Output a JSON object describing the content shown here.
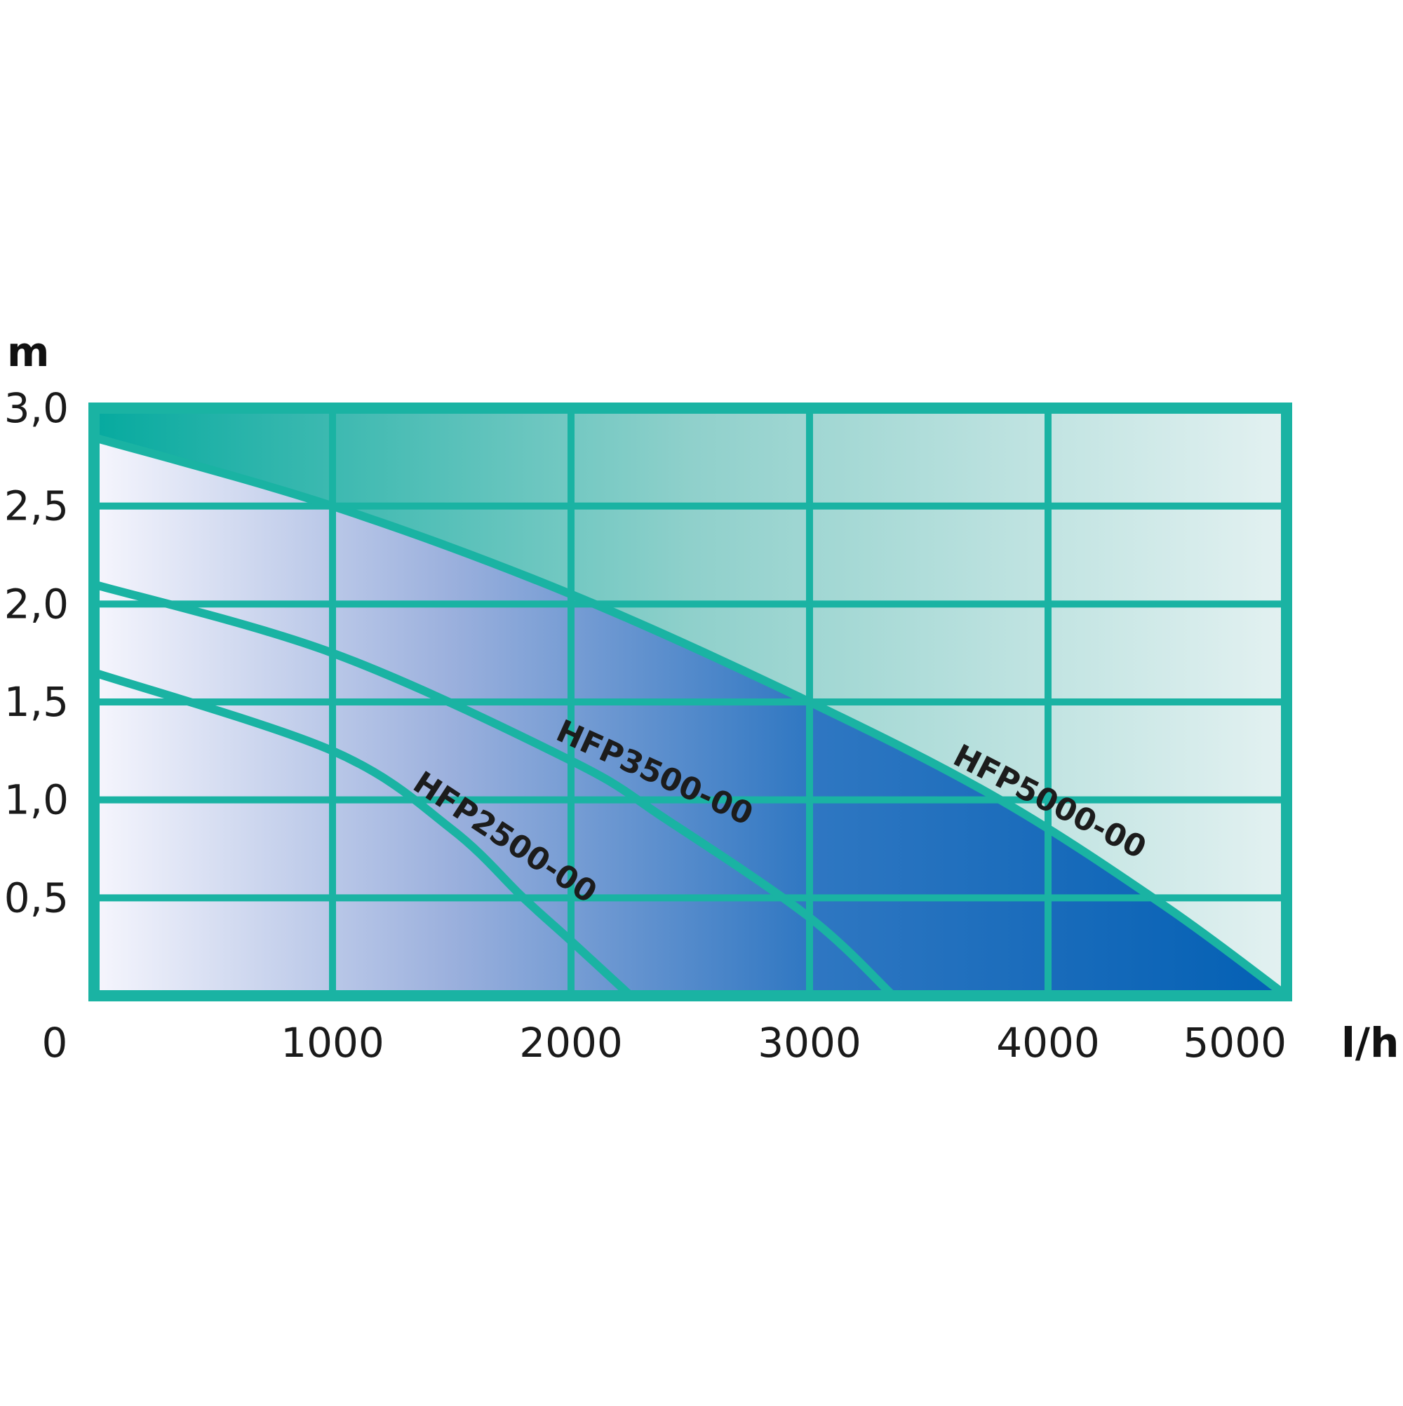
{
  "chart_data": {
    "type": "line",
    "ylabel": "m",
    "xlabel": "l/h",
    "xlim": [
      0,
      5000
    ],
    "ylim": [
      0,
      3.0
    ],
    "grid": true,
    "x_ticks": [
      "0",
      "1000",
      "2000",
      "3000",
      "4000",
      "5000"
    ],
    "y_ticks": [
      "0,5",
      "1,0",
      "1,5",
      "2,0",
      "2,5",
      "3,0"
    ],
    "series": [
      {
        "name": "HFP5000-00",
        "x": [
          0,
          1000,
          2000,
          3000,
          3800,
          4500,
          5000
        ],
        "y": [
          2.85,
          2.5,
          2.05,
          1.5,
          1.0,
          0.45,
          0.0
        ]
      },
      {
        "name": "HFP3500-00",
        "x": [
          0,
          1000,
          2000,
          2400,
          3000,
          3350
        ],
        "y": [
          2.1,
          1.75,
          1.2,
          0.9,
          0.4,
          0.0
        ]
      },
      {
        "name": "HFP2500-00",
        "x": [
          0,
          1000,
          1500,
          1800,
          2000,
          2250
        ],
        "y": [
          1.65,
          1.25,
          0.85,
          0.5,
          0.28,
          0.0
        ]
      }
    ],
    "colors": {
      "frame": "#1ab3a3",
      "area_light": "#f6f6fd",
      "area_dark": "#0360b4",
      "upper_dark": "#06aa9f",
      "upper_light": "#e3f1f1"
    }
  }
}
